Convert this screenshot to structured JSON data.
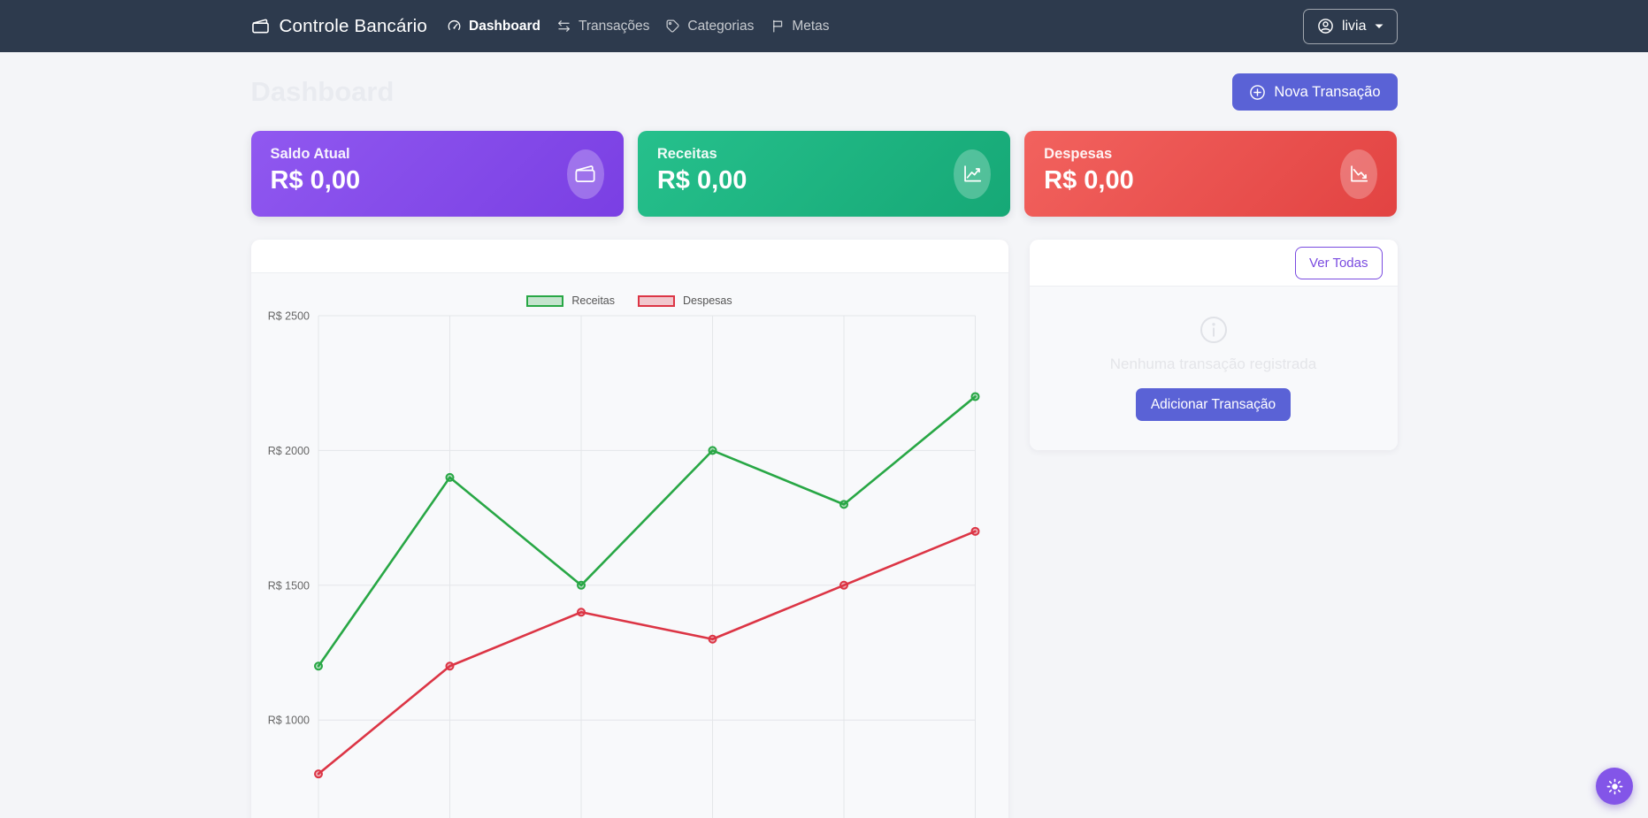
{
  "navbar": {
    "brand": "Controle Bancário",
    "items": [
      {
        "label": "Dashboard",
        "icon": "speedometer-icon",
        "active": true
      },
      {
        "label": "Transações",
        "icon": "arrows-left-right-icon",
        "active": false
      },
      {
        "label": "Categorias",
        "icon": "tag-icon",
        "active": false
      },
      {
        "label": "Metas",
        "icon": "flag-icon",
        "active": false
      }
    ],
    "user": {
      "name": "livia",
      "icon": "person-circle-icon"
    }
  },
  "page": {
    "title": "Dashboard",
    "new_transaction_label": "Nova Transação"
  },
  "stats": [
    {
      "label": "Saldo Atual",
      "value": "R$ 0,00",
      "icon": "wallet-icon",
      "color": "#8a53ef"
    },
    {
      "label": "Receitas",
      "value": "R$ 0,00",
      "icon": "graph-up-icon",
      "color": "#1db989"
    },
    {
      "label": "Despesas",
      "value": "R$ 0,00",
      "icon": "graph-down-icon",
      "color": "#ec4d4c"
    }
  ],
  "transactions_panel": {
    "view_all_label": "Ver Todas",
    "empty_message": "Nenhuma transação registrada",
    "add_button_label": "Adicionar Transação",
    "icon": "info-circle-icon"
  },
  "theme_toggle": {
    "icon": "sun-icon"
  },
  "chart_data": {
    "type": "line",
    "categories": [
      "",
      "",
      "",
      "",
      "",
      ""
    ],
    "series": [
      {
        "name": "Receitas",
        "color": "#28a745",
        "values": [
          1200,
          1900,
          1500,
          2000,
          1800,
          2200
        ]
      },
      {
        "name": "Despesas",
        "color": "#dc3545",
        "values": [
          800,
          1200,
          1400,
          1300,
          1500,
          1700
        ]
      }
    ],
    "y_ticks": [
      2500,
      2000,
      1500,
      1000
    ],
    "y_tick_prefix": "R$ ",
    "ylim": [
      500,
      2500
    ],
    "grid": true,
    "legend_position": "top"
  }
}
